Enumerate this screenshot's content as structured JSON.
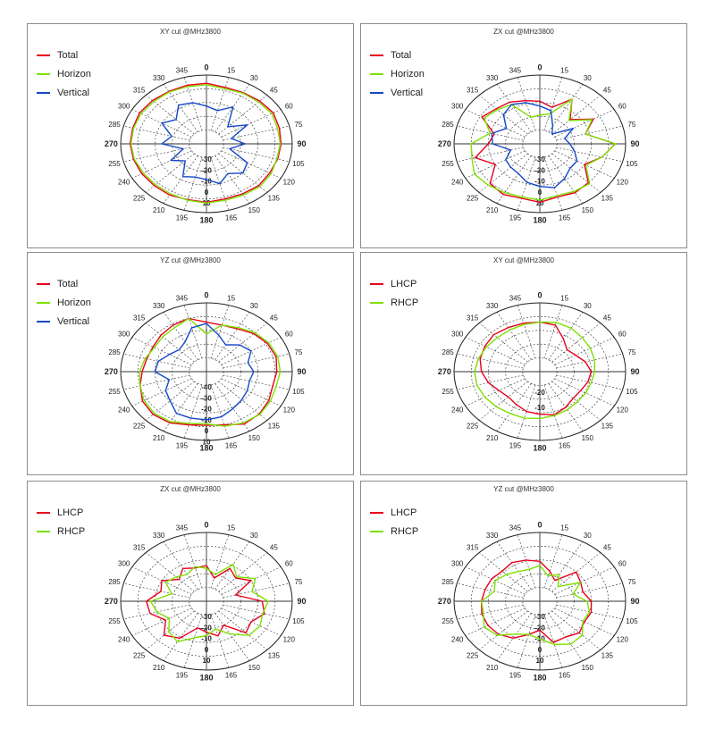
{
  "chart_data": [
    {
      "type": "polar",
      "title": "XY cut @MHz3800",
      "angles": [
        0,
        15,
        30,
        45,
        60,
        75,
        90,
        105,
        120,
        135,
        150,
        165,
        180,
        195,
        210,
        225,
        240,
        255,
        270,
        285,
        300,
        315,
        330,
        345
      ],
      "radial_labels": [
        "-30",
        "-20",
        "-10",
        "0",
        "10"
      ],
      "series": [
        {
          "name": "Total",
          "color": "#e8001c",
          "values": [
            0.88,
            0.85,
            0.86,
            0.88,
            0.9,
            0.88,
            0.87,
            0.86,
            0.85,
            0.86,
            0.84,
            0.83,
            0.85,
            0.84,
            0.86,
            0.86,
            0.87,
            0.88,
            0.89,
            0.89,
            0.9,
            0.89,
            0.88,
            0.88
          ]
        },
        {
          "name": "Horizon",
          "color": "#7ee000",
          "values": [
            0.86,
            0.83,
            0.85,
            0.86,
            0.88,
            0.86,
            0.86,
            0.85,
            0.87,
            0.88,
            0.86,
            0.85,
            0.86,
            0.85,
            0.84,
            0.84,
            0.85,
            0.87,
            0.88,
            0.88,
            0.88,
            0.87,
            0.87,
            0.86
          ]
        },
        {
          "name": "Vertical",
          "color": "#1448c8",
          "values": [
            0.55,
            0.5,
            0.62,
            0.35,
            0.55,
            0.3,
            0.45,
            0.28,
            0.55,
            0.6,
            0.5,
            0.6,
            0.52,
            0.5,
            0.55,
            0.35,
            0.48,
            0.28,
            0.52,
            0.42,
            0.6,
            0.5,
            0.65,
            0.62
          ]
        }
      ]
    },
    {
      "type": "polar",
      "title": "ZX cut @MHz3800",
      "angles": [
        0,
        15,
        30,
        45,
        60,
        75,
        90,
        105,
        120,
        135,
        150,
        165,
        180,
        195,
        210,
        225,
        240,
        255,
        270,
        285,
        300,
        315,
        330,
        345
      ],
      "radial_labels": [
        "-30",
        "-20",
        "-10",
        "0",
        "10"
      ],
      "series": [
        {
          "name": "Total",
          "color": "#e8001c",
          "values": [
            0.62,
            0.55,
            0.75,
            0.5,
            0.72,
            0.55,
            0.88,
            0.75,
            0.6,
            0.8,
            0.82,
            0.8,
            0.85,
            0.82,
            0.85,
            0.82,
            0.6,
            0.78,
            0.6,
            0.55,
            0.78,
            0.72,
            0.7,
            0.65
          ]
        },
        {
          "name": "Horizon",
          "color": "#7ee000",
          "values": [
            0.42,
            0.45,
            0.75,
            0.48,
            0.7,
            0.55,
            0.88,
            0.75,
            0.62,
            0.82,
            0.8,
            0.78,
            0.82,
            0.8,
            0.82,
            0.85,
            0.88,
            0.82,
            0.8,
            0.6,
            0.75,
            0.7,
            0.66,
            0.4
          ]
        },
        {
          "name": "Vertical",
          "color": "#1448c8",
          "values": [
            0.55,
            0.5,
            0.3,
            0.2,
            0.45,
            0.3,
            0.35,
            0.42,
            0.5,
            0.5,
            0.58,
            0.66,
            0.62,
            0.58,
            0.5,
            0.48,
            0.46,
            0.35,
            0.55,
            0.58,
            0.45,
            0.6,
            0.66,
            0.62
          ]
        }
      ]
    },
    {
      "type": "polar",
      "title": "YZ cut @MHz3800",
      "angles": [
        0,
        15,
        30,
        45,
        60,
        75,
        90,
        105,
        120,
        135,
        150,
        165,
        180,
        195,
        210,
        225,
        240,
        255,
        270,
        285,
        300,
        315,
        330,
        345
      ],
      "radial_labels": [
        "-40",
        "-30",
        "-20",
        "-10",
        "0",
        "10"
      ],
      "series": [
        {
          "name": "Total",
          "color": "#e8001c",
          "values": [
            0.72,
            0.7,
            0.72,
            0.78,
            0.82,
            0.84,
            0.82,
            0.8,
            0.84,
            0.87,
            0.88,
            0.8,
            0.78,
            0.8,
            0.86,
            0.88,
            0.86,
            0.8,
            0.75,
            0.72,
            0.72,
            0.75,
            0.78,
            0.8
          ]
        },
        {
          "name": "Horizon",
          "color": "#7ee000",
          "values": [
            0.55,
            0.7,
            0.74,
            0.8,
            0.84,
            0.86,
            0.86,
            0.84,
            0.86,
            0.88,
            0.86,
            0.82,
            0.76,
            0.78,
            0.84,
            0.86,
            0.84,
            0.8,
            0.78,
            0.74,
            0.7,
            0.72,
            0.74,
            0.8
          ]
        },
        {
          "name": "Vertical",
          "color": "#1448c8",
          "values": [
            0.7,
            0.55,
            0.45,
            0.55,
            0.6,
            0.5,
            0.55,
            0.52,
            0.55,
            0.58,
            0.62,
            0.68,
            0.7,
            0.7,
            0.7,
            0.6,
            0.55,
            0.45,
            0.6,
            0.58,
            0.5,
            0.45,
            0.5,
            0.66
          ]
        }
      ]
    },
    {
      "type": "polar",
      "title": "XY cut @MHz3800",
      "angles": [
        0,
        15,
        30,
        45,
        60,
        75,
        90,
        105,
        120,
        135,
        150,
        165,
        180,
        195,
        210,
        225,
        240,
        255,
        270,
        285,
        300,
        315,
        330,
        345
      ],
      "radial_labels": [
        "-20",
        "-10"
      ],
      "series": [
        {
          "name": "LHCP",
          "color": "#e8001c",
          "values": [
            0.72,
            0.7,
            0.55,
            0.45,
            0.48,
            0.55,
            0.6,
            0.58,
            0.55,
            0.55,
            0.6,
            0.65,
            0.62,
            0.6,
            0.55,
            0.52,
            0.55,
            0.62,
            0.68,
            0.72,
            0.74,
            0.76,
            0.74,
            0.73
          ]
        },
        {
          "name": "RHCP",
          "color": "#7ee000",
          "values": [
            0.72,
            0.74,
            0.73,
            0.7,
            0.68,
            0.66,
            0.64,
            0.62,
            0.62,
            0.62,
            0.64,
            0.66,
            0.68,
            0.7,
            0.7,
            0.72,
            0.74,
            0.76,
            0.76,
            0.74,
            0.72,
            0.7,
            0.7,
            0.71
          ]
        }
      ]
    },
    {
      "type": "polar",
      "title": "ZX cut @MHz3800",
      "angles": [
        0,
        15,
        30,
        45,
        60,
        75,
        90,
        105,
        120,
        135,
        150,
        165,
        180,
        195,
        210,
        225,
        240,
        255,
        270,
        285,
        300,
        315,
        330,
        345
      ],
      "radial_labels": [
        "-30",
        "-20",
        "-10",
        "0",
        "10"
      ],
      "series": [
        {
          "name": "LHCP",
          "color": "#e8001c",
          "values": [
            0.52,
            0.35,
            0.55,
            0.48,
            0.6,
            0.35,
            0.65,
            0.7,
            0.6,
            0.65,
            0.4,
            0.52,
            0.45,
            0.4,
            0.62,
            0.7,
            0.55,
            0.68,
            0.7,
            0.55,
            0.6,
            0.45,
            0.55,
            0.5
          ]
        },
        {
          "name": "RHCP",
          "color": "#7ee000",
          "values": [
            0.48,
            0.4,
            0.62,
            0.5,
            0.66,
            0.55,
            0.72,
            0.68,
            0.72,
            0.7,
            0.55,
            0.42,
            0.5,
            0.55,
            0.68,
            0.62,
            0.5,
            0.6,
            0.65,
            0.42,
            0.55,
            0.5,
            0.45,
            0.52
          ]
        }
      ]
    },
    {
      "type": "polar",
      "title": "YZ cut @MHz3800",
      "angles": [
        0,
        15,
        30,
        45,
        60,
        75,
        90,
        105,
        120,
        135,
        150,
        165,
        180,
        195,
        210,
        225,
        240,
        255,
        270,
        285,
        300,
        315,
        330,
        345
      ],
      "radial_labels": [
        "-30",
        "-20",
        "-10",
        "0",
        "10"
      ],
      "series": [
        {
          "name": "LHCP",
          "color": "#e8001c",
          "values": [
            0.58,
            0.45,
            0.35,
            0.6,
            0.55,
            0.52,
            0.6,
            0.62,
            0.6,
            0.65,
            0.6,
            0.62,
            0.42,
            0.5,
            0.62,
            0.68,
            0.7,
            0.7,
            0.68,
            0.66,
            0.65,
            0.62,
            0.65,
            0.62
          ]
        },
        {
          "name": "RHCP",
          "color": "#7ee000",
          "values": [
            0.52,
            0.38,
            0.45,
            0.3,
            0.55,
            0.4,
            0.55,
            0.6,
            0.58,
            0.7,
            0.72,
            0.65,
            0.55,
            0.5,
            0.55,
            0.7,
            0.75,
            0.68,
            0.68,
            0.55,
            0.6,
            0.55,
            0.5,
            0.48
          ]
        }
      ]
    }
  ]
}
